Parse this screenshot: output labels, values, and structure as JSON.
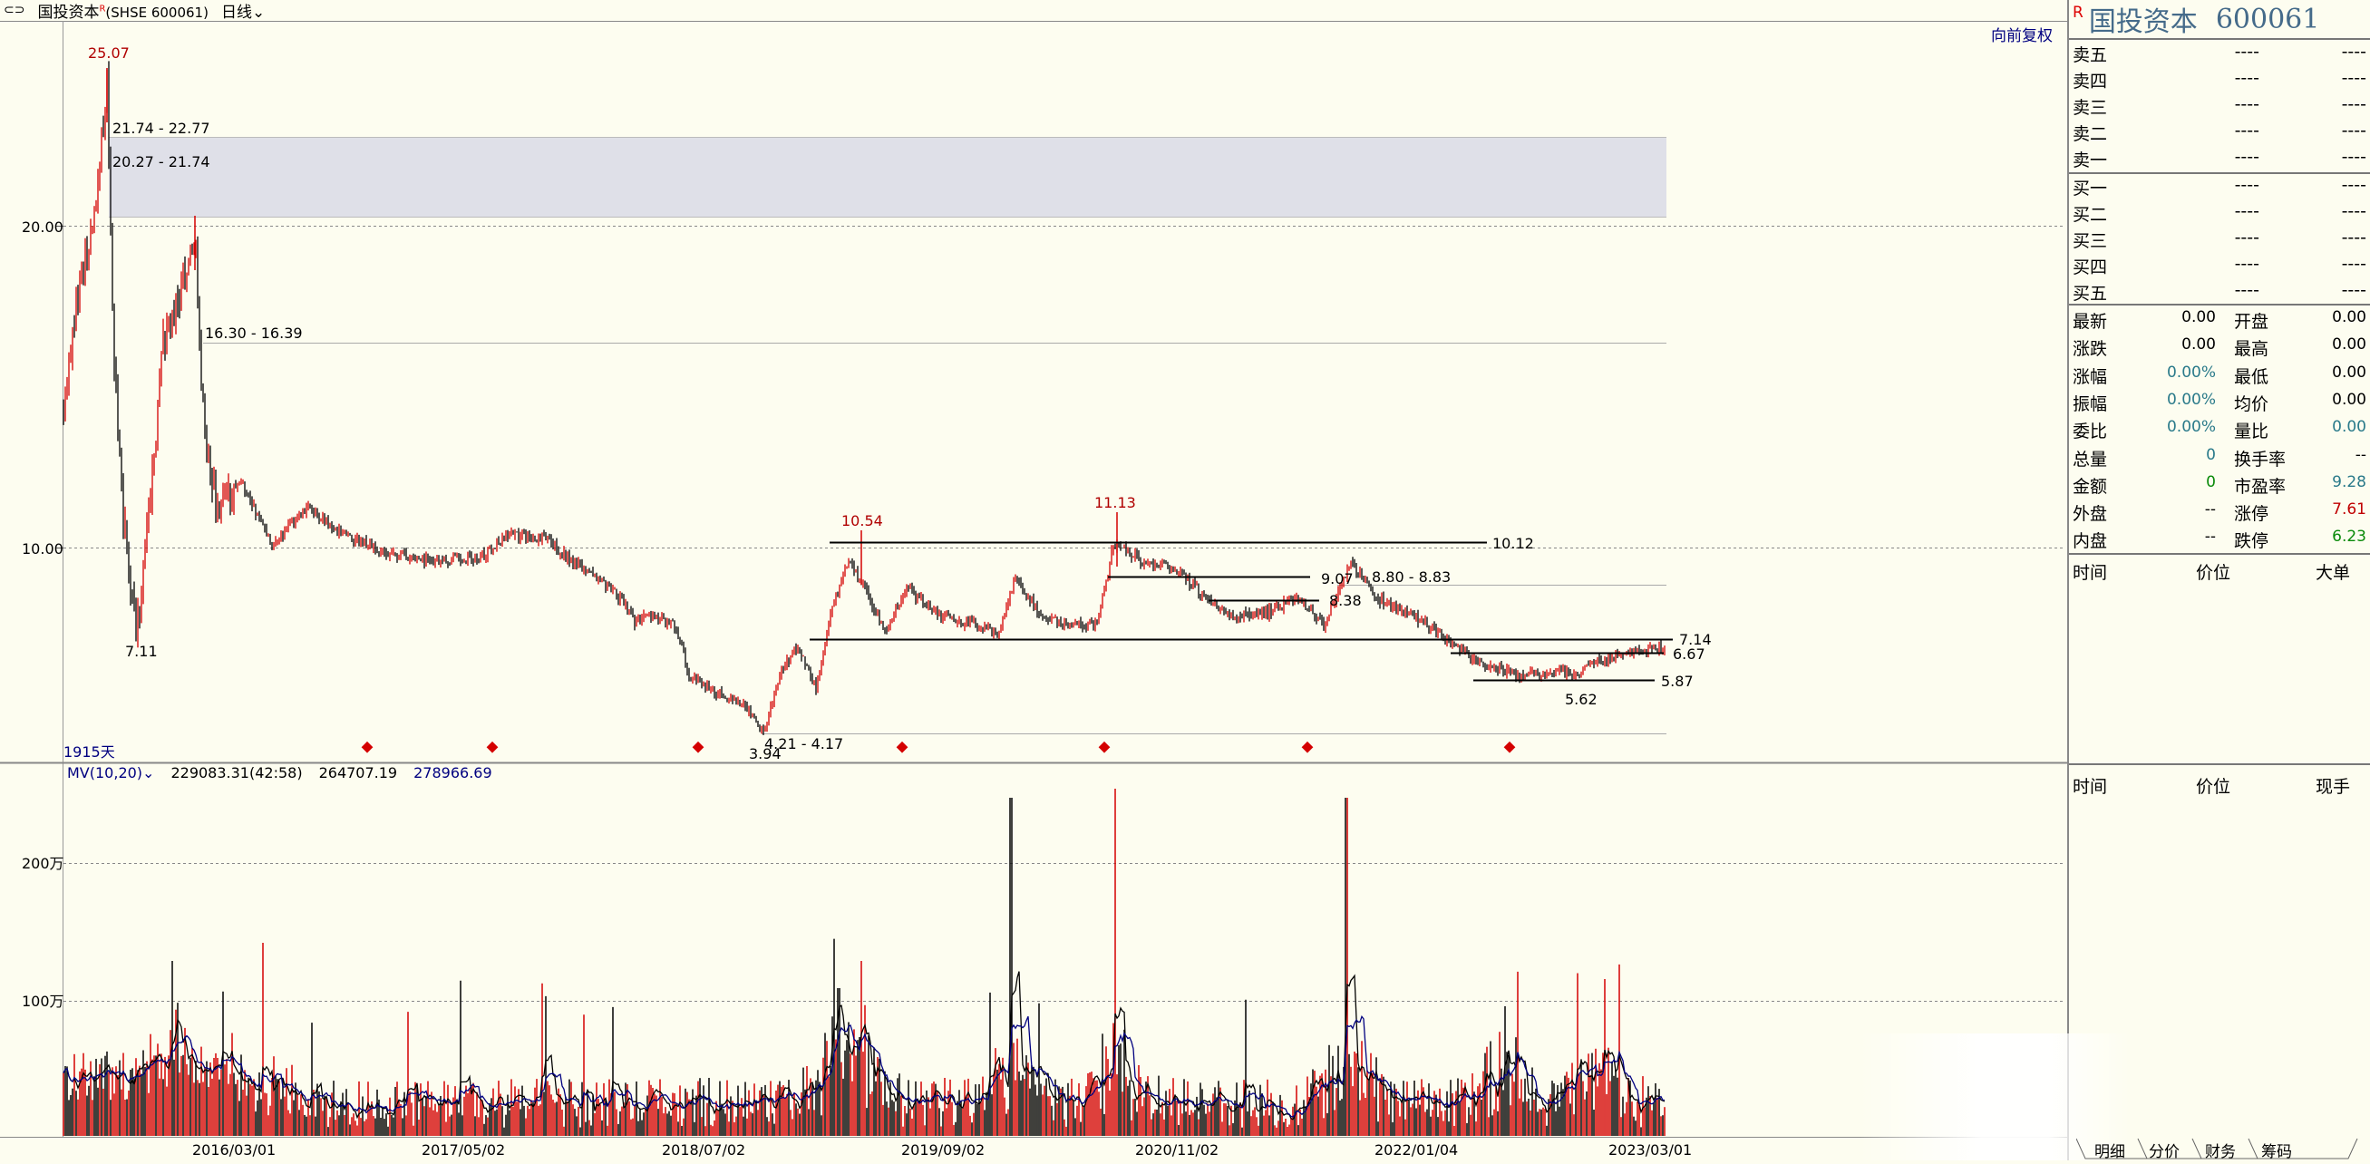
{
  "titlebar": {
    "icon": "chart-link-icon",
    "symbol": "国投资本",
    "symbol_mark": "R",
    "exchange_code": "(SHSE 600061)",
    "period": "日线"
  },
  "toolbar": {
    "adjust_label": "向前复权"
  },
  "main_chart": {
    "days_label": "1915天",
    "y_ticks": [
      "20.00",
      "10.00"
    ],
    "x_ticks": [
      "2016/03/01",
      "2017/05/02",
      "2018/07/02",
      "2019/09/02",
      "2020/11/02",
      "2022/01/04",
      "2023/03/01"
    ],
    "peak_labels": [
      "25.07",
      "10.54",
      "11.13"
    ],
    "low_labels": [
      "7.11",
      "3.94",
      "5.62"
    ],
    "zone_labels": [
      "21.74 - 22.77",
      "20.27 - 21.74",
      "16.30 - 16.39",
      "4.21 - 4.17",
      "9.07",
      "8.80 - 8.83",
      "8.38"
    ],
    "line_labels": [
      "10.12",
      "7.14",
      "6.67",
      "5.87"
    ]
  },
  "volume_chart": {
    "legend_title": "MV(10,20)",
    "legend_values": [
      "229083.31(42:58)",
      "264707.19",
      "278966.69"
    ],
    "y_ticks": [
      "200万",
      "100万"
    ]
  },
  "panel": {
    "mark": "R",
    "name": "国投资本",
    "code": "600061",
    "orderbook": [
      {
        "label": "卖五",
        "price": "----",
        "volume": "----"
      },
      {
        "label": "卖四",
        "price": "----",
        "volume": "----"
      },
      {
        "label": "卖三",
        "price": "----",
        "volume": "----"
      },
      {
        "label": "卖二",
        "price": "----",
        "volume": "----"
      },
      {
        "label": "卖一",
        "price": "----",
        "volume": "----"
      },
      {
        "label": "买一",
        "price": "----",
        "volume": "----"
      },
      {
        "label": "买二",
        "price": "----",
        "volume": "----"
      },
      {
        "label": "买三",
        "price": "----",
        "volume": "----"
      },
      {
        "label": "买四",
        "price": "----",
        "volume": "----"
      },
      {
        "label": "买五",
        "price": "----",
        "volume": "----"
      }
    ],
    "quotes": [
      {
        "l1": "最新",
        "v1": "0.00",
        "l2": "开盘",
        "v2": "0.00"
      },
      {
        "l1": "涨跌",
        "v1": "0.00",
        "l2": "最高",
        "v2": "0.00"
      },
      {
        "l1": "涨幅",
        "v1": "0.00%",
        "l2": "最低",
        "v2": "0.00"
      },
      {
        "l1": "振幅",
        "v1": "0.00%",
        "l2": "均价",
        "v2": "0.00"
      },
      {
        "l1": "委比",
        "v1": "0.00%",
        "l2": "量比",
        "v2": "0.00"
      },
      {
        "l1": "总量",
        "v1": "0",
        "l2": "换手率",
        "v2": "--"
      },
      {
        "l1": "金额",
        "v1": "0",
        "l2": "市盈率",
        "v2": "9.28"
      },
      {
        "l1": "外盘",
        "v1": "--",
        "l2": "涨停",
        "v2": "7.61"
      },
      {
        "l1": "内盘",
        "v1": "--",
        "l2": "跌停",
        "v2": "6.23"
      }
    ],
    "trades_head": {
      "time": "时间",
      "price": "价位",
      "size": "大单"
    },
    "trades_head2": {
      "time": "时间",
      "price": "价位",
      "size": "现手"
    },
    "tabs": [
      "明细",
      "分价",
      "财务",
      "筹码"
    ]
  },
  "colors": {
    "up": "#d40000",
    "down": "#000000",
    "accent": "#000080",
    "bg": "#fdfdf0"
  }
}
